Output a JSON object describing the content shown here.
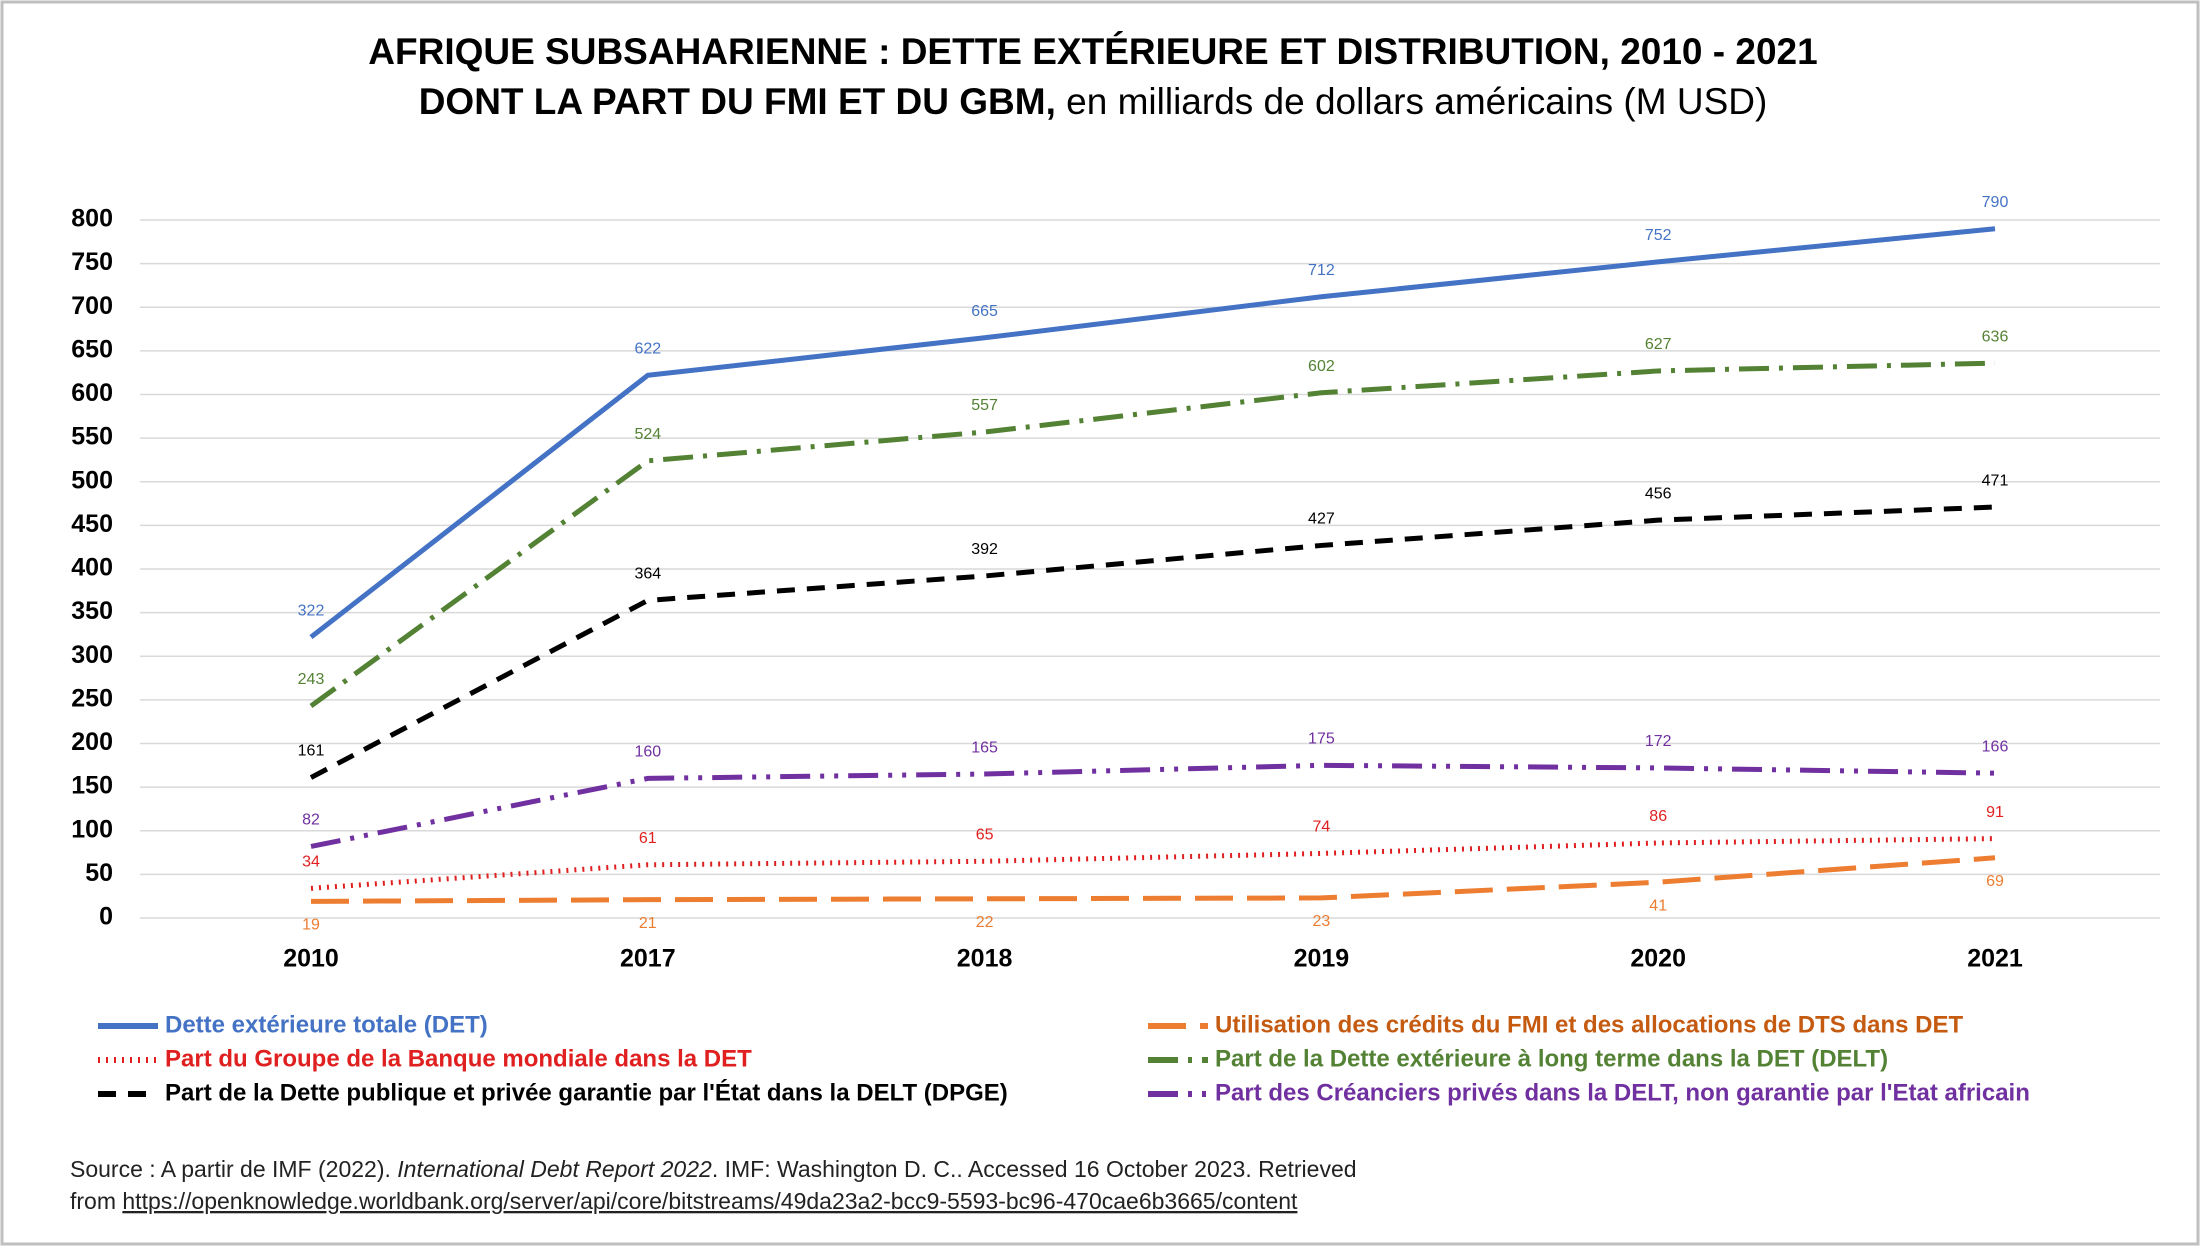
{
  "chart_data": {
    "type": "line",
    "title": {
      "line1": "AFRIQUE SUBSAHARIENNE : DETTE EXTÉRIEURE ET DISTRIBUTION, 2010 - 2021",
      "line2_bold": "DONT LA PART DU FMI ET DU GBM,",
      "line2_rest": " en milliards de dollars américains (M USD)"
    },
    "categories": [
      "2010",
      "2017",
      "2018",
      "2019",
      "2020",
      "2021"
    ],
    "ylim": [
      0,
      800
    ],
    "yticks": [
      0,
      50,
      100,
      150,
      200,
      250,
      300,
      350,
      400,
      450,
      500,
      550,
      600,
      650,
      700,
      750,
      800
    ],
    "grid": true,
    "series": [
      {
        "name": "Dette extérieure totale (DET)",
        "color": "#4472c4",
        "dash": "solid",
        "label_position": "above",
        "values": [
          322,
          622,
          665,
          712,
          752,
          790
        ]
      },
      {
        "name": "Part du Groupe de la Banque mondiale dans la DET",
        "color": "#e02020",
        "dash": "dot",
        "label_position": "above",
        "values": [
          34,
          61,
          65,
          74,
          86,
          91
        ]
      },
      {
        "name": "Part de la Dette publique et privée garantie par l'État dans la DELT (DPGE)",
        "color": "#000000",
        "dash": "dash",
        "label_position": "above",
        "values": [
          161,
          364,
          392,
          427,
          456,
          471
        ]
      },
      {
        "name": "Utilisation des crédits du FMI et des allocations de DTS dans DET",
        "color": "#ed7d31",
        "dash": "longdash",
        "label_position": "below",
        "values": [
          19,
          21,
          22,
          23,
          41,
          69
        ]
      },
      {
        "name": "Part de la Dette extérieure à long terme dans la DET (DELT)",
        "color": "#548235",
        "dash": "dashdot",
        "label_position": "above",
        "values": [
          243,
          524,
          557,
          602,
          627,
          636
        ]
      },
      {
        "name": "Part des Créanciers privés dans la DELT, non garantie par l'Etat africain",
        "color": "#7030a0",
        "dash": "dashdotdot",
        "label_position": "above",
        "values": [
          82,
          160,
          165,
          175,
          172,
          166
        ]
      }
    ],
    "source": {
      "part1": "Source : A partir de IMF (2022). ",
      "italic": "International Debt Report 2022",
      "part2": ". IMF: Washington D. C.. Accessed 16 October 2023. Retrieved",
      "part3": "from ",
      "link": "https://openknowledge.worldbank.org/server/api/core/bitstreams/49da23a2-bcc9-5593-bc96-470cae6b3665/content"
    }
  }
}
